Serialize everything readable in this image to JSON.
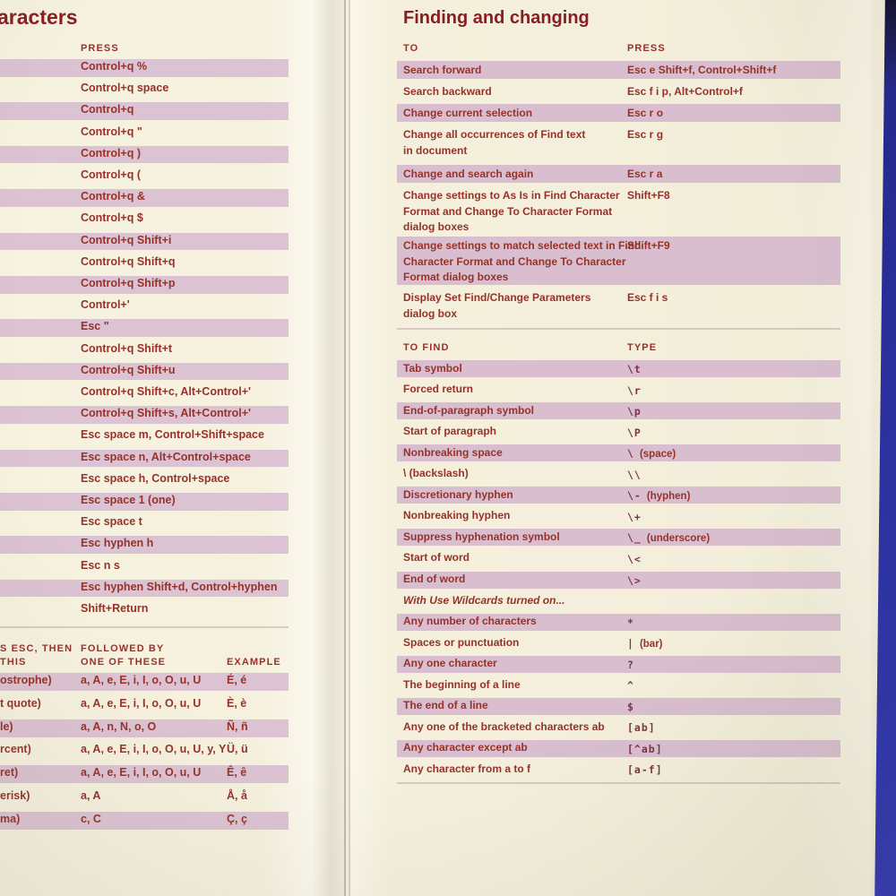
{
  "left_page": {
    "title_fragment": "aracters",
    "press_table": {
      "header": "PRESS",
      "rows": [
        "Control+q %",
        "Control+q space",
        "Control+q",
        "Control+q \"",
        "Control+q )",
        "Control+q (",
        "Control+q &",
        "Control+q $",
        "Control+q Shift+i",
        "Control+q Shift+q",
        "Control+q Shift+p",
        "Control+'",
        "Esc \"",
        "Control+q Shift+t",
        "Control+q Shift+u",
        "Control+q Shift+c, Alt+Control+'",
        "Control+q Shift+s, Alt+Control+'",
        "Esc space m, Control+Shift+space",
        "Esc space n, Alt+Control+space",
        "Esc space h, Control+space",
        "Esc space 1 (one)",
        "Esc space t",
        "Esc hyphen h",
        "Esc n s",
        "Esc hyphen Shift+d, Control+hyphen",
        "Shift+Return"
      ]
    },
    "accent_table": {
      "col1_header_line1": "S ESC, THEN",
      "col1_header_line2": "THIS",
      "col2_header_line1": "FOLLOWED BY",
      "col2_header_line2": "ONE OF THESE",
      "col3_header": "EXAMPLE",
      "rows": [
        {
          "key": "ostrophe)",
          "followed_by": "a, A, e, E, i, I, o, O, u, U",
          "example": "É, é"
        },
        {
          "key": "t quote)",
          "followed_by": "a, A, e, E, i, I, o, O, u, U",
          "example": "È, è"
        },
        {
          "key": "le)",
          "followed_by": "a, A, n, N, o, O",
          "example": "Ñ, ñ"
        },
        {
          "key": "rcent)",
          "followed_by": "a, A, e, E, i, I, o, O, u, U, y, Y",
          "example": "Ü, ü"
        },
        {
          "key": "ret)",
          "followed_by": "a, A, e, E, i, I, o, O, u, U",
          "example": "Ê, ê"
        },
        {
          "key": "erisk)",
          "followed_by": "a, A",
          "example": "Å, å"
        },
        {
          "key": "ma)",
          "followed_by": "c, C",
          "example": "Ç, ç"
        }
      ]
    }
  },
  "right_page": {
    "title": "Finding and changing",
    "find_table": {
      "col1_header": "TO",
      "col2_header": "PRESS",
      "rows": [
        {
          "to_lines": [
            "Search forward"
          ],
          "press": "Esc e Shift+f, Control+Shift+f"
        },
        {
          "to_lines": [
            "Search backward"
          ],
          "press": "Esc f i p, Alt+Control+f"
        },
        {
          "to_lines": [
            "Change current selection"
          ],
          "press": "Esc r o"
        },
        {
          "to_lines": [
            "Change all occurrences of Find text",
            "in document"
          ],
          "press": "Esc r g"
        },
        {
          "to_lines": [
            "Change and search again"
          ],
          "press": "Esc r a"
        },
        {
          "to_lines": [
            "Change settings to As Is in Find Character",
            "Format and Change To Character Format",
            "dialog boxes"
          ],
          "press": "Shift+F8"
        },
        {
          "to_lines": [
            "Change settings to match selected text in Find",
            "Character Format and Change To Character",
            "Format dialog boxes"
          ],
          "press": "Shift+F9"
        },
        {
          "to_lines": [
            "Display Set Find/Change Parameters",
            "dialog box"
          ],
          "press": "Esc f i s"
        }
      ]
    },
    "wildcard_table": {
      "col1_header": "TO FIND",
      "col2_header": "TYPE",
      "rows": [
        {
          "to_find": "Tab symbol",
          "symbol": "\\t"
        },
        {
          "to_find": "Forced return",
          "symbol": "\\r"
        },
        {
          "to_find": "End-of-paragraph symbol",
          "symbol": "\\p"
        },
        {
          "to_find": "Start of paragraph",
          "symbol": "\\P"
        },
        {
          "to_find": "Nonbreaking space",
          "symbol": "\\",
          "note": "(space)"
        },
        {
          "to_find": "\\ (backslash)",
          "symbol": "\\\\"
        },
        {
          "to_find": "Discretionary hyphen",
          "symbol": "\\-",
          "note": "(hyphen)"
        },
        {
          "to_find": "Nonbreaking hyphen",
          "symbol": "\\+"
        },
        {
          "to_find": "Suppress hyphenation symbol",
          "symbol": "\\_",
          "note": "(underscore)"
        },
        {
          "to_find": "Start of word",
          "symbol": "\\<"
        },
        {
          "to_find": "End of word",
          "symbol": "\\>"
        },
        {
          "to_find": "With Use Wildcards turned on...",
          "subheader": true
        },
        {
          "to_find": "Any number of characters",
          "symbol": "*"
        },
        {
          "to_find": "Spaces or punctuation",
          "symbol": "|",
          "note": "(bar)"
        },
        {
          "to_find": "Any one character",
          "symbol": "?"
        },
        {
          "to_find": "The beginning of a line",
          "symbol": "^"
        },
        {
          "to_find": "The end of a line",
          "symbol": "$"
        },
        {
          "to_find": "Any one of the bracketed characters ab",
          "symbol": "[ab]"
        },
        {
          "to_find": "Any character except ab",
          "symbol": "[^ab]"
        },
        {
          "to_find": "Any character from a to f",
          "symbol": "[a-f]"
        }
      ]
    }
  },
  "colors": {
    "page_bg": "#f4f0dd",
    "stripe_left": "#dcc3d3",
    "stripe_right": "#d8becf",
    "text_maroon": "#96322a",
    "title_red": "#881e22",
    "mono_plum": "#7d3340",
    "blue_edge": "#2a2fa6"
  }
}
